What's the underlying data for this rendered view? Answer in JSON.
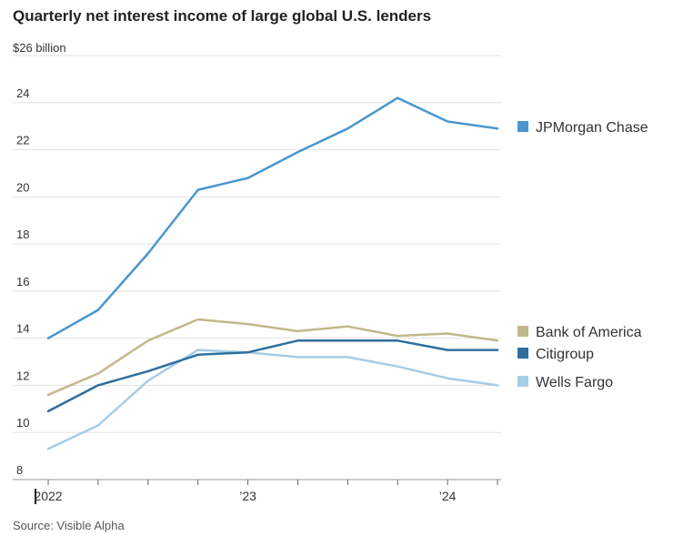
{
  "chart_data": {
    "type": "line",
    "title": "Quarterly net interest income of large global U.S. lenders",
    "unit_label": "$26 billion",
    "ylim": [
      8,
      26
    ],
    "yticks": [
      8,
      10,
      12,
      14,
      16,
      18,
      20,
      22,
      24
    ],
    "x": [
      "Q1 2022",
      "Q2 2022",
      "Q3 2022",
      "Q4 2022",
      "Q1 2023",
      "Q2 2023",
      "Q3 2023",
      "Q4 2023",
      "Q1 2024",
      "Q2 2024"
    ],
    "xtick_labels": [
      {
        "index": 0,
        "label": "2022"
      },
      {
        "index": 4,
        "label": "’23"
      },
      {
        "index": 8,
        "label": "’24"
      }
    ],
    "series": [
      {
        "name": "JPMorgan Chase",
        "color": "#4a96cf",
        "values": [
          14.0,
          15.2,
          17.6,
          20.3,
          20.8,
          21.9,
          22.9,
          24.2,
          23.2,
          22.9
        ]
      },
      {
        "name": "Bank of America",
        "color": "#c2b88a",
        "values": [
          11.6,
          12.5,
          13.9,
          14.8,
          14.6,
          14.3,
          14.5,
          14.1,
          14.2,
          13.9
        ]
      },
      {
        "name": "Citigroup",
        "color": "#2e6f9e",
        "values": [
          10.9,
          12.0,
          12.6,
          13.3,
          13.4,
          13.9,
          13.9,
          13.9,
          13.5,
          13.5
        ]
      },
      {
        "name": "Wells Fargo",
        "color": "#a6cde6",
        "values": [
          9.3,
          10.3,
          12.2,
          13.5,
          13.4,
          13.2,
          13.2,
          12.8,
          12.3,
          12.0
        ]
      }
    ],
    "legend": "right",
    "source": "Source: Visible Alpha"
  }
}
